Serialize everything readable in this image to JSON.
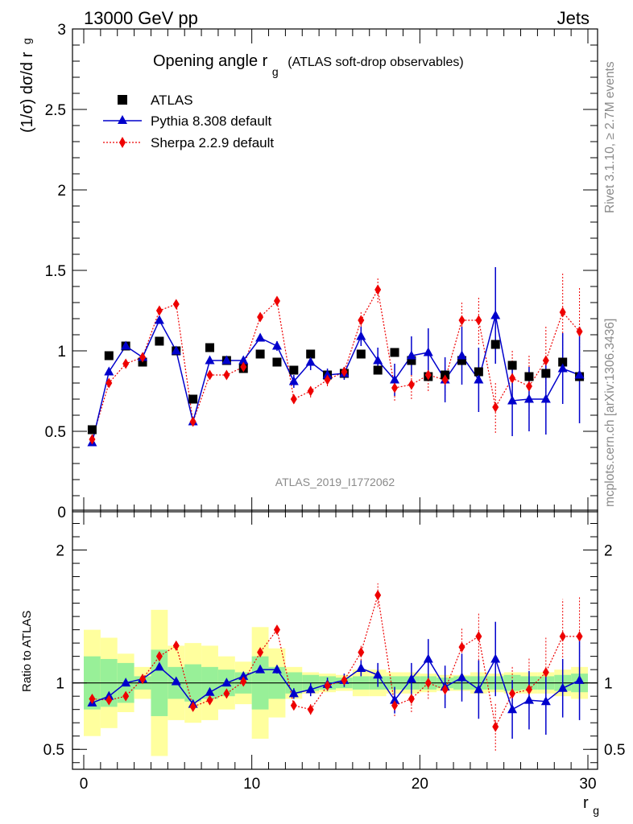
{
  "header": {
    "left": "13000 GeV pp",
    "right": "Jets"
  },
  "side_labels": {
    "rivet": "Rivet 3.1.10, ≥ 2.7M events",
    "mcplots": "mcplots.cern.ch [arXiv:1306.3436]"
  },
  "chart_data": {
    "type": "scatter",
    "title_main": "Opening angle r",
    "title_sub": "g",
    "title_suffix": "(ATLAS soft-drop observables)",
    "analysis_id": "ATLAS_2019_I1772062",
    "ylabel_main": "(1/σ) dσ/d r",
    "ylabel_sub": "g",
    "ratio_ylabel": "Ratio to ATLAS",
    "xlabel_main": "r",
    "xlabel_sub": "g",
    "xlim": [
      0,
      30
    ],
    "ylim": [
      0,
      3
    ],
    "ratio_ylim": [
      0.35,
      2.3
    ],
    "x_ticks": [
      "0",
      "10",
      "20",
      "30"
    ],
    "y_ticks": [
      "0",
      "0.5",
      "1",
      "1.5",
      "2",
      "2.5",
      "3"
    ],
    "ratio_y_ticks": [
      "0.5",
      "1",
      "2"
    ],
    "ratio_y_ticks_right": [
      "0.5",
      "1",
      "2"
    ],
    "x": [
      0.5,
      1.5,
      2.5,
      3.5,
      4.5,
      5.5,
      6.5,
      7.5,
      8.5,
      9.5,
      10.5,
      11.5,
      12.5,
      13.5,
      14.5,
      15.5,
      16.5,
      17.5,
      18.5,
      19.5,
      20.5,
      21.5,
      22.5,
      23.5,
      24.5,
      25.5,
      26.5,
      27.5,
      28.5,
      29.5
    ],
    "series": [
      {
        "name": "ATLAS",
        "color": "#000000",
        "marker": "square",
        "values": [
          0.51,
          0.97,
          1.03,
          0.93,
          1.06,
          1.0,
          0.7,
          1.02,
          0.94,
          0.89,
          0.98,
          0.93,
          0.88,
          0.98,
          0.85,
          0.86,
          0.98,
          0.88,
          0.99,
          0.94,
          0.84,
          0.85,
          0.94,
          0.87,
          1.04,
          0.91,
          0.84,
          0.86,
          0.93,
          0.84
        ]
      },
      {
        "name": "Pythia 8.308 default",
        "color": "#0000cc",
        "marker": "triangle",
        "values": [
          0.43,
          0.87,
          1.03,
          0.96,
          1.19,
          1.0,
          0.56,
          0.94,
          0.94,
          0.94,
          1.08,
          1.03,
          0.81,
          0.93,
          0.85,
          0.86,
          1.09,
          0.94,
          0.82,
          0.97,
          0.99,
          0.82,
          0.97,
          0.82,
          1.22,
          0.69,
          0.7,
          0.7,
          0.89,
          0.85
        ],
        "errors": [
          0.01,
          0.01,
          0.01,
          0.01,
          0.02,
          0.02,
          0.01,
          0.01,
          0.01,
          0.02,
          0.02,
          0.03,
          0.04,
          0.05,
          0.04,
          0.04,
          0.06,
          0.08,
          0.1,
          0.12,
          0.15,
          0.14,
          0.18,
          0.2,
          0.3,
          0.22,
          0.2,
          0.22,
          0.22,
          0.3
        ]
      },
      {
        "name": "Sherpa 2.2.9 default",
        "color": "#ee0000",
        "marker": "diamond",
        "values": [
          0.45,
          0.8,
          0.92,
          0.96,
          1.25,
          1.29,
          0.56,
          0.85,
          0.85,
          0.9,
          1.21,
          1.31,
          0.7,
          0.75,
          0.82,
          0.87,
          1.19,
          1.38,
          0.77,
          0.79,
          0.85,
          0.82,
          1.19,
          1.19,
          0.65,
          0.83,
          0.78,
          0.94,
          1.24,
          1.12
        ],
        "errors": [
          0.01,
          0.01,
          0.01,
          0.01,
          0.02,
          0.02,
          0.01,
          0.01,
          0.01,
          0.02,
          0.03,
          0.03,
          0.03,
          0.04,
          0.04,
          0.04,
          0.06,
          0.08,
          0.08,
          0.09,
          0.1,
          0.1,
          0.12,
          0.15,
          0.16,
          0.18,
          0.2,
          0.22,
          0.25,
          0.28
        ]
      }
    ],
    "ratio_series": [
      {
        "name": "Pythia 8.308 default",
        "values": [
          0.85,
          0.9,
          1.0,
          1.03,
          1.12,
          1.01,
          0.84,
          0.93,
          1.0,
          1.05,
          1.1,
          1.1,
          0.92,
          0.95,
          0.99,
          1.02,
          1.11,
          1.06,
          0.87,
          1.03,
          1.18,
          0.97,
          1.04,
          0.95,
          1.18,
          0.8,
          0.87,
          0.86,
          0.96,
          1.02
        ],
        "errors": [
          0.01,
          0.01,
          0.01,
          0.01,
          0.02,
          0.02,
          0.02,
          0.01,
          0.01,
          0.02,
          0.02,
          0.03,
          0.04,
          0.05,
          0.05,
          0.05,
          0.06,
          0.09,
          0.1,
          0.12,
          0.15,
          0.16,
          0.18,
          0.22,
          0.28,
          0.22,
          0.22,
          0.25,
          0.22,
          0.3
        ]
      },
      {
        "name": "Sherpa 2.2.9 default",
        "values": [
          0.88,
          0.87,
          0.9,
          1.03,
          1.2,
          1.28,
          0.82,
          0.87,
          0.92,
          1.01,
          1.23,
          1.4,
          0.83,
          0.8,
          0.98,
          1.02,
          1.23,
          1.66,
          0.83,
          0.88,
          1.0,
          0.95,
          1.27,
          1.35,
          0.67,
          0.92,
          0.95,
          1.08,
          1.35,
          1.35
        ],
        "errors": [
          0.01,
          0.01,
          0.01,
          0.01,
          0.02,
          0.02,
          0.02,
          0.01,
          0.01,
          0.02,
          0.03,
          0.03,
          0.03,
          0.04,
          0.04,
          0.04,
          0.06,
          0.09,
          0.08,
          0.1,
          0.12,
          0.12,
          0.14,
          0.18,
          0.18,
          0.2,
          0.24,
          0.26,
          0.28,
          0.3
        ]
      }
    ],
    "ratio_bands": {
      "green": [
        0.2,
        0.18,
        0.15,
        0.05,
        0.25,
        0.12,
        0.14,
        0.12,
        0.1,
        0.08,
        0.2,
        0.12,
        0.08,
        0.06,
        0.05,
        0.04,
        0.05,
        0.05,
        0.05,
        0.05,
        0.05,
        0.04,
        0.05,
        0.05,
        0.05,
        0.06,
        0.05,
        0.05,
        0.06,
        0.07
      ],
      "yellow": [
        0.4,
        0.34,
        0.22,
        0.12,
        0.55,
        0.28,
        0.3,
        0.28,
        0.2,
        0.16,
        0.42,
        0.26,
        0.12,
        0.08,
        0.07,
        0.06,
        0.1,
        0.1,
        0.08,
        0.08,
        0.07,
        0.06,
        0.06,
        0.08,
        0.07,
        0.08,
        0.08,
        0.08,
        0.1,
        0.12
      ]
    },
    "legend_position": "top-left",
    "colors": {
      "band_green": "#98f098",
      "band_yellow": "#ffff9e"
    }
  }
}
